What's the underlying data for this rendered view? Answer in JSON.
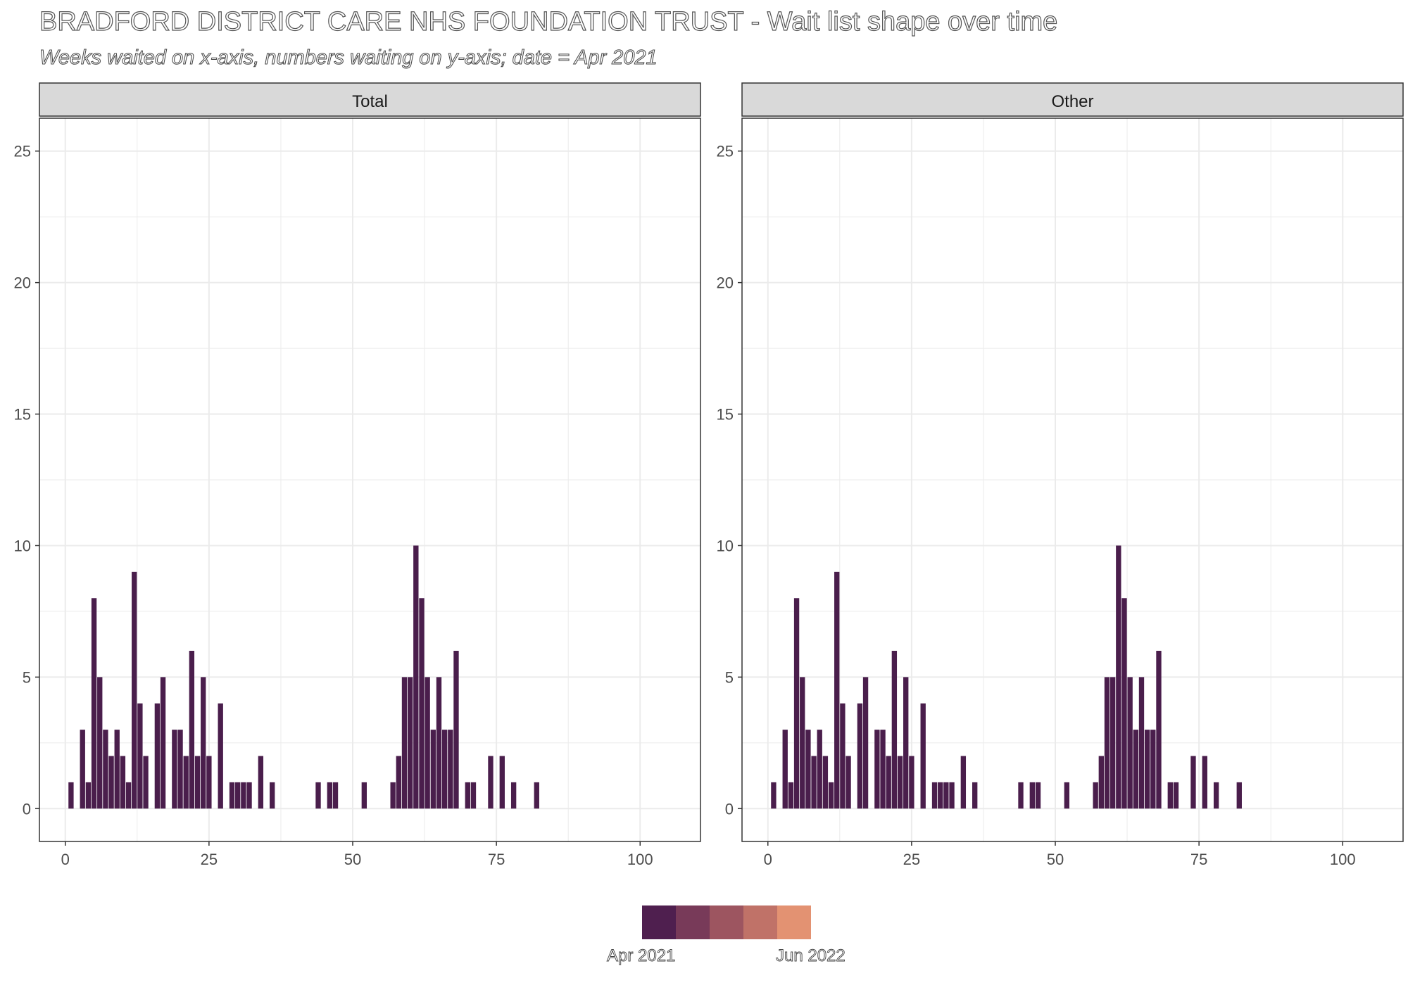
{
  "title": "BRADFORD DISTRICT CARE NHS FOUNDATION TRUST - Wait list shape over time",
  "subtitle": "Weeks waited on x-axis, numbers waiting on y-axis; date = Apr 2021",
  "colors": {
    "bar": "#4a1e4c",
    "strip_fill": "#d9d9d9",
    "grid": "#ebebeb",
    "panel_border": "#333333",
    "legend": [
      "#4f1f4f",
      "#783a59",
      "#9d5560",
      "#c07268",
      "#e39272"
    ]
  },
  "legend": {
    "start_label": "Apr 2021",
    "end_label": "Jun 2022"
  },
  "chart_data": [
    {
      "type": "bar",
      "panel": "Total",
      "xlim": [
        -4.5,
        110.5
      ],
      "ylim": [
        -1.25,
        26.25
      ],
      "x_ticks": [
        0,
        25,
        50,
        75,
        100
      ],
      "y_ticks": [
        0,
        5,
        10,
        15,
        20,
        25
      ],
      "grid": true,
      "x": [
        1,
        3,
        4,
        5,
        6,
        7,
        8,
        9,
        10,
        11,
        12,
        13,
        14,
        16,
        17,
        19,
        20,
        21,
        22,
        23,
        24,
        25,
        27,
        29,
        30,
        31,
        32,
        34,
        36,
        44,
        46,
        47,
        52,
        57,
        58,
        59,
        60,
        61,
        62,
        63,
        64,
        65,
        66,
        67,
        68,
        70,
        71,
        74,
        76,
        78,
        82
      ],
      "values": [
        1,
        3,
        1,
        8,
        5,
        3,
        2,
        3,
        2,
        1,
        9,
        4,
        2,
        4,
        5,
        3,
        3,
        2,
        6,
        2,
        5,
        2,
        4,
        1,
        1,
        1,
        1,
        2,
        1,
        1,
        1,
        1,
        1,
        1,
        2,
        5,
        5,
        10,
        8,
        5,
        3,
        5,
        3,
        3,
        6,
        1,
        1,
        2,
        2,
        1,
        1
      ]
    },
    {
      "type": "bar",
      "panel": "Other",
      "xlim": [
        -4.5,
        110.5
      ],
      "ylim": [
        -1.25,
        26.25
      ],
      "x_ticks": [
        0,
        25,
        50,
        75,
        100
      ],
      "y_ticks": [
        0,
        5,
        10,
        15,
        20,
        25
      ],
      "grid": true,
      "x": [
        1,
        3,
        4,
        5,
        6,
        7,
        8,
        9,
        10,
        11,
        12,
        13,
        14,
        16,
        17,
        19,
        20,
        21,
        22,
        23,
        24,
        25,
        27,
        29,
        30,
        31,
        32,
        34,
        36,
        44,
        46,
        47,
        52,
        57,
        58,
        59,
        60,
        61,
        62,
        63,
        64,
        65,
        66,
        67,
        68,
        70,
        71,
        74,
        76,
        78,
        82
      ],
      "values": [
        1,
        3,
        1,
        8,
        5,
        3,
        2,
        3,
        2,
        1,
        9,
        4,
        2,
        4,
        5,
        3,
        3,
        2,
        6,
        2,
        5,
        2,
        4,
        1,
        1,
        1,
        1,
        2,
        1,
        1,
        1,
        1,
        1,
        1,
        2,
        5,
        5,
        10,
        8,
        5,
        3,
        5,
        3,
        3,
        6,
        1,
        1,
        2,
        2,
        1,
        1
      ]
    }
  ]
}
